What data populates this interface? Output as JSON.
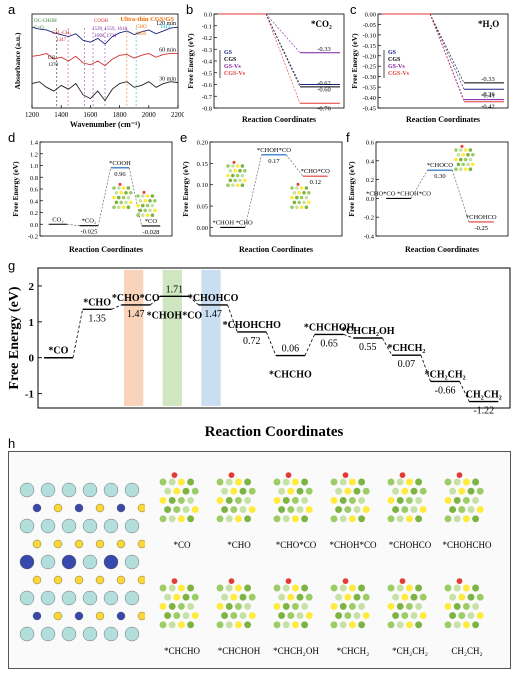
{
  "panel_labels": {
    "a": "a",
    "b": "b",
    "c": "c",
    "d": "d",
    "e": "e",
    "f": "f",
    "g": "g",
    "h": "h"
  },
  "chart_data": [
    {
      "panel": "a",
      "type": "line",
      "title": "Ultra-thin CGS/GS",
      "xlabel": "Wavenumber (cm⁻¹)",
      "ylabel": "Absorbance (a.u.)",
      "xlim": [
        1200,
        2200
      ],
      "xticks": [
        1200,
        1400,
        1600,
        1800,
        2000,
        2200
      ],
      "series": [
        {
          "name": "120 min",
          "color": "#1a237e",
          "x": [
            1200,
            1250,
            1300,
            1350,
            1400,
            1450,
            1500,
            1550,
            1600,
            1650,
            1700,
            1750,
            1800,
            1850,
            1900,
            1950,
            2000,
            2050,
            2100,
            2150,
            2200
          ],
          "y": [
            0.86,
            0.84,
            0.83,
            0.8,
            0.78,
            0.76,
            0.79,
            0.72,
            0.7,
            0.74,
            0.68,
            0.76,
            0.8,
            0.82,
            0.78,
            0.81,
            0.83,
            0.79,
            0.82,
            0.85,
            0.86
          ]
        },
        {
          "name": "60 min",
          "color": "#d32f2f",
          "x": [
            1200,
            1250,
            1300,
            1350,
            1400,
            1450,
            1500,
            1550,
            1600,
            1650,
            1700,
            1750,
            1800,
            1850,
            1900,
            1950,
            2000,
            2050,
            2100,
            2150,
            2200
          ],
          "y": [
            0.55,
            0.56,
            0.58,
            0.52,
            0.54,
            0.5,
            0.55,
            0.48,
            0.46,
            0.5,
            0.45,
            0.52,
            0.56,
            0.57,
            0.53,
            0.56,
            0.58,
            0.54,
            0.57,
            0.58,
            0.58
          ]
        },
        {
          "name": "30 min",
          "color": "#212121",
          "x": [
            1200,
            1250,
            1300,
            1350,
            1400,
            1450,
            1500,
            1550,
            1600,
            1650,
            1700,
            1750,
            1800,
            1850,
            1900,
            1950,
            2000,
            2050,
            2100,
            2150,
            2200
          ],
          "y": [
            0.26,
            0.28,
            0.22,
            0.18,
            0.24,
            0.2,
            0.26,
            0.14,
            0.1,
            0.18,
            0.08,
            0.2,
            0.26,
            0.28,
            0.22,
            0.24,
            0.28,
            0.22,
            0.26,
            0.28,
            0.27
          ]
        }
      ],
      "annotations": [
        {
          "text": "OC-CHOH",
          "color": "#2e7d32"
        },
        {
          "text": "C=O",
          "color": "#2e7d32"
        },
        {
          "text": "CH₃-CH₂",
          "color": "#d32f2f"
        },
        {
          "text": "1447",
          "color": "#d32f2f"
        },
        {
          "text": "CH",
          "color": "#000000"
        },
        {
          "text": "1370",
          "color": "#000000"
        },
        {
          "text": "COOH",
          "color": "#d32f2f"
        },
        {
          "text": "1539, 1559, 1618",
          "color": "#7b1fa2"
        },
        {
          "text": "1698, 1724",
          "color": "#7b1fa2"
        },
        {
          "text": "CHO",
          "color": "#ef6c00"
        },
        {
          "text": "1850",
          "color": "#ef6c00"
        },
        {
          "text": "1913",
          "color": "#00acc1"
        }
      ]
    },
    {
      "panel": "b",
      "type": "line",
      "subtitle": "*CO₂",
      "xlabel": "Reaction Coordinates",
      "ylabel": "Free Energy (eV)",
      "ylim": [
        -0.8,
        0.0
      ],
      "yticks": [
        "0.0",
        "-0.1",
        "-0.2",
        "-0.3",
        "-0.4",
        "-0.5",
        "-0.6",
        "-0.7",
        "-0.8"
      ],
      "legend": [
        "GS",
        "CGS",
        "GS-Vs",
        "CGS-Vs"
      ],
      "series": [
        {
          "name": "GS",
          "color": "#1a237e",
          "values": [
            0,
            -0.6
          ]
        },
        {
          "name": "CGS",
          "color": "#000000",
          "values": [
            0,
            -0.62
          ]
        },
        {
          "name": "GS-Vs",
          "color": "#7b1fa2",
          "values": [
            0,
            -0.33
          ]
        },
        {
          "name": "CGS-Vs",
          "color": "#e53935",
          "values": [
            0,
            -0.76
          ]
        }
      ],
      "level_labels": [
        "-0.33",
        "-0.60",
        "-0.62",
        "-0.76"
      ]
    },
    {
      "panel": "c",
      "type": "line",
      "subtitle": "*H₂O",
      "xlabel": "Reaction Coordinates",
      "ylabel": "Free Energy (eV)",
      "ylim": [
        -0.45,
        0.0
      ],
      "yticks": [
        "0.00",
        "-0.05",
        "-0.10",
        "-0.15",
        "-0.20",
        "-0.25",
        "-0.30",
        "-0.35",
        "-0.40",
        "-0.45"
      ],
      "legend": [
        "GS",
        "CGS",
        "GS-Vs",
        "CGS-Vs"
      ],
      "series": [
        {
          "name": "GS",
          "color": "#1a237e",
          "values": [
            0,
            -0.36
          ]
        },
        {
          "name": "CGS",
          "color": "#000000",
          "values": [
            0,
            -0.33
          ]
        },
        {
          "name": "GS-Vs",
          "color": "#7b1fa2",
          "values": [
            0,
            -0.41
          ]
        },
        {
          "name": "CGS-Vs",
          "color": "#e53935",
          "values": [
            0,
            -0.42
          ]
        }
      ],
      "level_labels": [
        "-0.33",
        "-0.36",
        "-0.41",
        "-0.42"
      ]
    },
    {
      "panel": "d",
      "type": "line",
      "xlabel": "Reaction Coordinates",
      "ylabel": "Free Energy (eV)",
      "ylim": [
        -0.2,
        1.4
      ],
      "yticks": [
        "1.4",
        "1.2",
        "1.0",
        "0.8",
        "0.6",
        "0.4",
        "0.2",
        "0.0",
        "-0.2"
      ],
      "steps": [
        {
          "label": "CO₂",
          "value": 0.0,
          "value_text": ""
        },
        {
          "label": "*CO₂",
          "value": -0.025,
          "value_text": "-0.025"
        },
        {
          "label": "*COOH",
          "value": 0.96,
          "value_text": "0.96"
        },
        {
          "label": "*CO",
          "value": -0.028,
          "value_text": "-0.028"
        }
      ]
    },
    {
      "panel": "e",
      "type": "line",
      "xlabel": "Reaction Coordinates",
      "ylabel": "Free Energy (eV)",
      "ylim": [
        -0.02,
        0.2
      ],
      "yticks": [
        "0.20",
        "0.15",
        "0.10",
        "0.05",
        "0.00"
      ],
      "steps": [
        {
          "label": "*CHOH *CHO",
          "value": 0.0,
          "value_text": ""
        },
        {
          "label": "*CHOH*CO",
          "value": 0.17,
          "value_text": "0.17"
        },
        {
          "label": "*CHO*CO",
          "value": 0.12,
          "value_text": "0.12"
        }
      ]
    },
    {
      "panel": "f",
      "type": "line",
      "xlabel": "Reaction Coordinates",
      "ylabel": "Free Energy (eV)",
      "ylim": [
        -0.4,
        0.6
      ],
      "yticks": [
        "0.6",
        "0.4",
        "0.2",
        "0.0",
        "-0.2",
        "-0.4"
      ],
      "steps": [
        {
          "label": "*CHO*CO *CHOH*CO",
          "value": 0.0,
          "value_text": ""
        },
        {
          "label": "*CHOCO",
          "value": 0.3,
          "value_text": "0.30"
        },
        {
          "label": "*CHOHCO",
          "value": -0.25,
          "value_text": "-0.25"
        }
      ]
    },
    {
      "panel": "g",
      "type": "line",
      "xlabel": "Reaction Coordinates",
      "ylabel": "Free Energy (eV)",
      "ylim": [
        -1.4,
        2.5
      ],
      "yticks": [
        "2",
        "1",
        "0",
        "-1"
      ],
      "highlight_colors": [
        "#f4b183",
        "#a9d18e",
        "#9dc3e6"
      ],
      "steps": [
        {
          "label": "*CO",
          "value": 0.0,
          "value_text": ""
        },
        {
          "label": "*CHO",
          "value": 1.35,
          "value_text": "1.35"
        },
        {
          "label": "*CHO*CO",
          "value": 1.47,
          "value_text": "1.47"
        },
        {
          "label": "*CHOH*CO",
          "value": 1.71,
          "value_text": "1.71"
        },
        {
          "label": "*CHOHCO",
          "value": 1.47,
          "value_text": "1.47"
        },
        {
          "label": "*CHOHCHO",
          "value": 0.72,
          "value_text": "0.72"
        },
        {
          "label": "*CHCHO",
          "value": 0.06,
          "value_text": "0.06"
        },
        {
          "label": "*CHCHOH",
          "value": 0.65,
          "value_text": "0.65"
        },
        {
          "label": "*CHCH₂OH",
          "value": 0.55,
          "value_text": "0.55"
        },
        {
          "label": "*CHCH₂",
          "value": 0.07,
          "value_text": "0.07"
        },
        {
          "label": "*CH₂CH₂",
          "value": -0.66,
          "value_text": "-0.66"
        },
        {
          "label": "CH₂CH₂",
          "value": -1.22,
          "value_text": "-1.22"
        }
      ]
    }
  ],
  "panel_h": {
    "labels_row1": [
      "*CO",
      "*CHO",
      "*CHO*CO",
      "*CHOH*CO",
      "*CHOHCO",
      "*CHOHCHO"
    ],
    "labels_row2": [
      "*CHCHO",
      "*CHCHOH",
      "*CHCH₂OH",
      "*CHCH₂",
      "*CH₂CH₂",
      "CH₂CH₂"
    ]
  }
}
